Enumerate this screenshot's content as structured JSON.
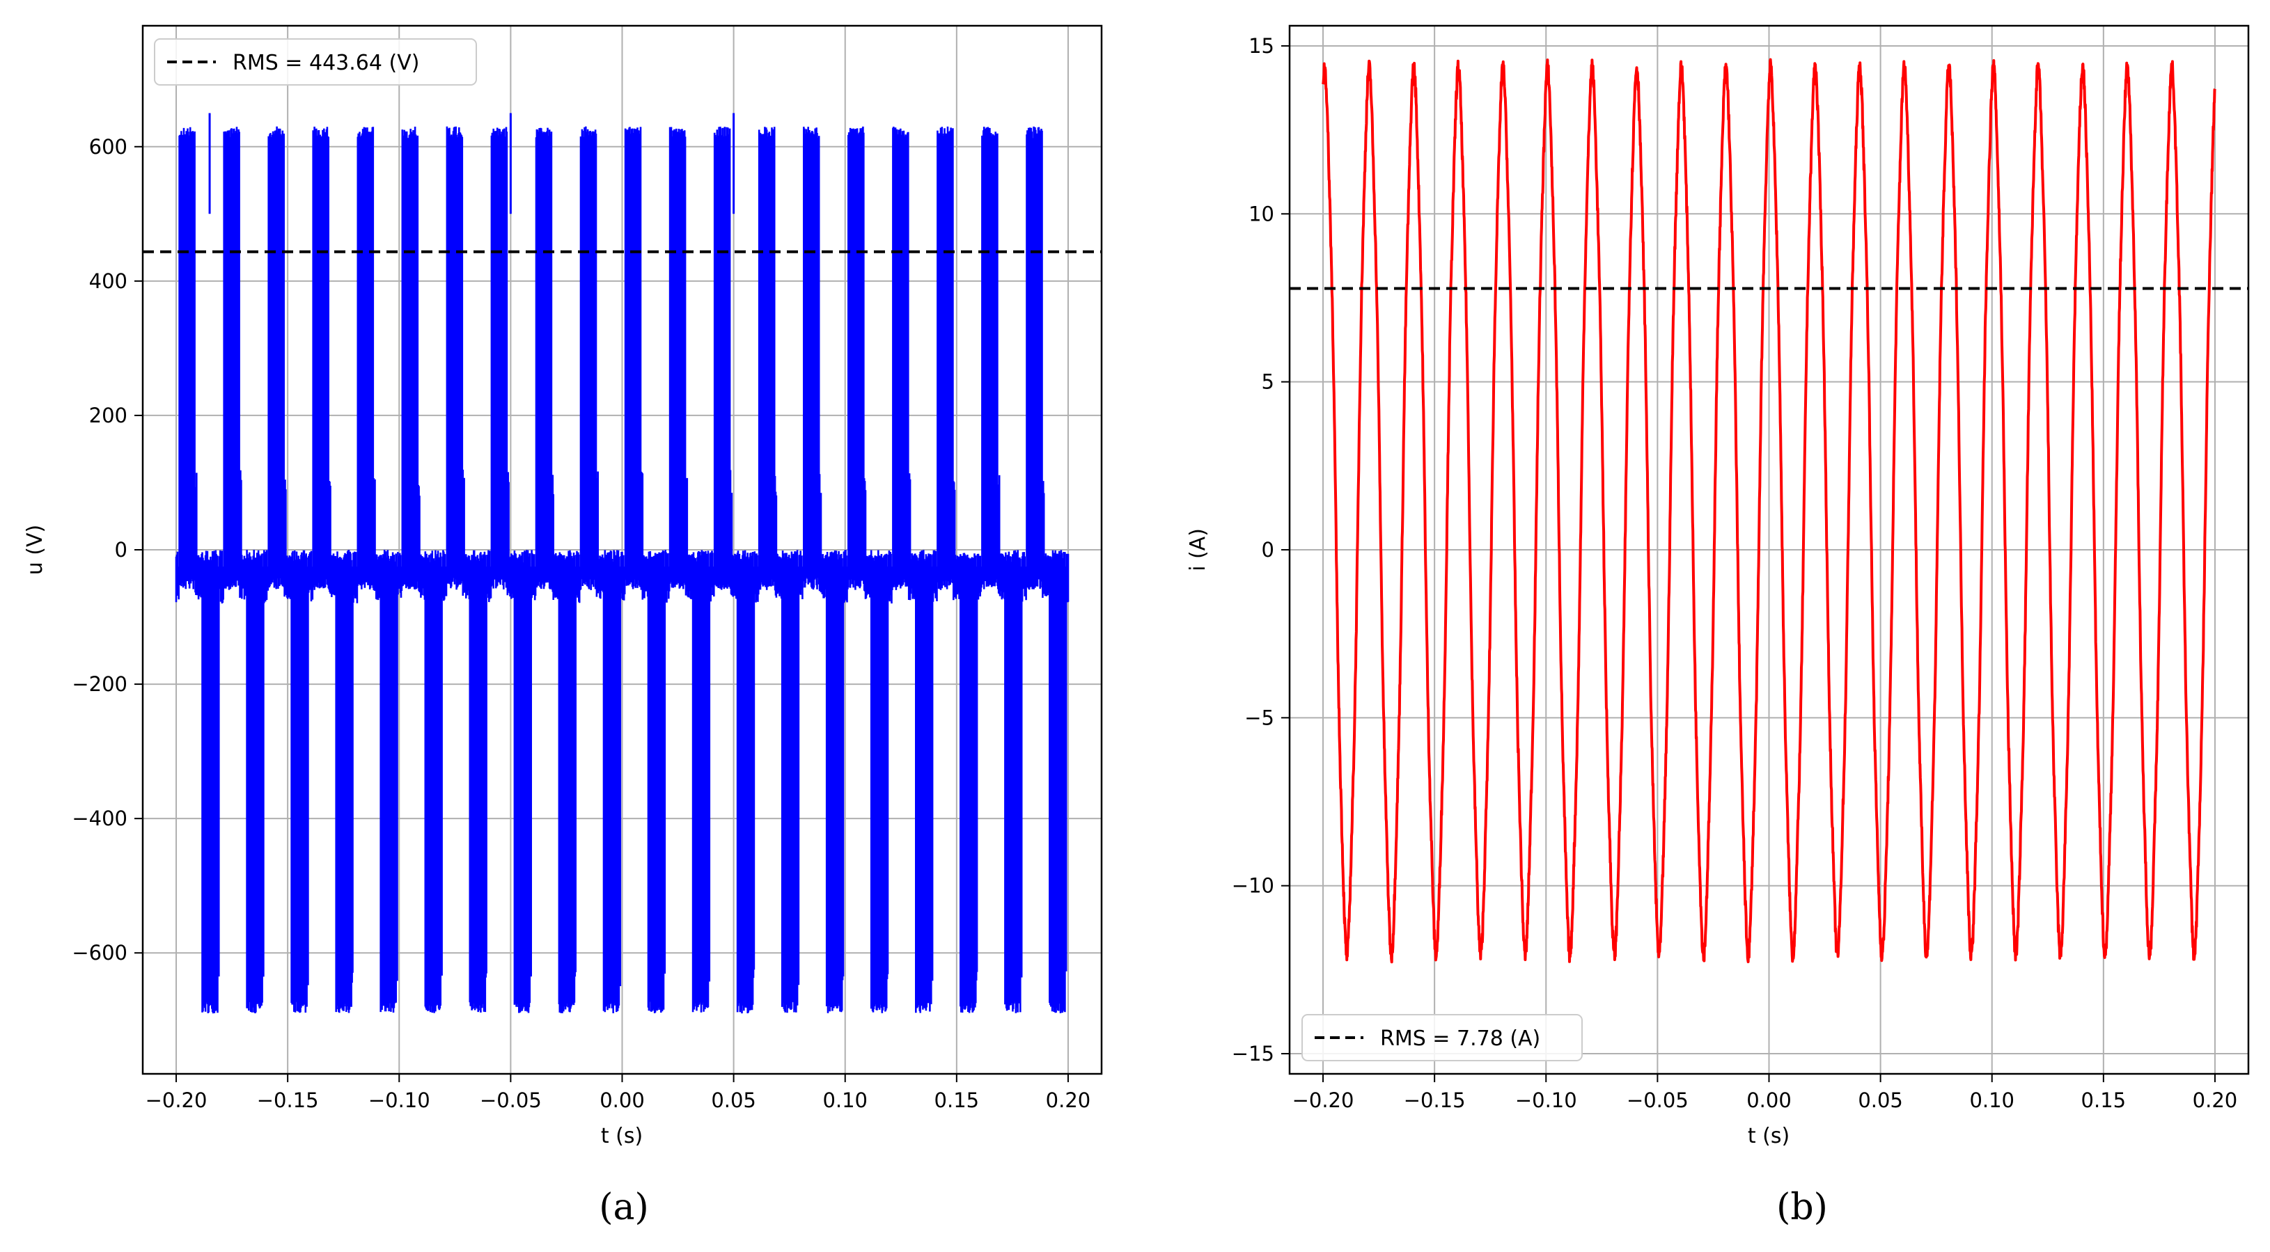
{
  "chart_data": [
    {
      "type": "line",
      "panel_label": "(a)",
      "xlabel": "t (s)",
      "ylabel": "u (V)",
      "xlim": [
        -0.215,
        0.215
      ],
      "ylim": [
        -780,
        780
      ],
      "xticks": [
        -0.2,
        -0.15,
        -0.1,
        -0.05,
        0.0,
        0.05,
        0.1,
        0.15,
        0.2
      ],
      "xtick_labels": [
        "−0.20",
        "−0.15",
        "−0.10",
        "−0.05",
        "0.00",
        "0.05",
        "0.10",
        "0.15",
        "0.20"
      ],
      "yticks": [
        -600,
        -400,
        -200,
        0,
        200,
        400,
        600
      ],
      "ytick_labels": [
        "−600",
        "−400",
        "−200",
        "0",
        "200",
        "400",
        "600"
      ],
      "grid": true,
      "legend_position": "top-left",
      "series": [
        {
          "kind": "pwm-voltage",
          "color": "#0000ff",
          "x_range": [
            -0.2,
            0.2
          ],
          "period": 0.02,
          "peak_max": 630,
          "peak_min": -690,
          "baseline": -40,
          "spike_max": 650
        },
        {
          "kind": "rms-line",
          "name": "RMS = 443.64 (V)",
          "value": 443.64,
          "color": "#000000",
          "style": "dashed"
        }
      ]
    },
    {
      "type": "line",
      "panel_label": "(b)",
      "xlabel": "t (s)",
      "ylabel": "i (A)",
      "xlim": [
        -0.215,
        0.215
      ],
      "ylim": [
        -15.6,
        15.6
      ],
      "xticks": [
        -0.2,
        -0.15,
        -0.1,
        -0.05,
        0.0,
        0.05,
        0.1,
        0.15,
        0.2
      ],
      "xtick_labels": [
        "−0.20",
        "−0.15",
        "−0.10",
        "−0.05",
        "0.00",
        "0.05",
        "0.10",
        "0.15",
        "0.20"
      ],
      "yticks": [
        -15,
        -10,
        -5,
        0,
        5,
        10,
        15
      ],
      "ytick_labels": [
        "−15",
        "−10",
        "−5",
        "0",
        "5",
        "10",
        "15"
      ],
      "grid": true,
      "legend_position": "bottom-left",
      "series": [
        {
          "kind": "sine-current",
          "color": "#ff0000",
          "x_range": [
            -0.2,
            0.2
          ],
          "period": 0.02,
          "max": 14.0,
          "min": -11.7,
          "start_value": 13.7,
          "end_value": 13.2
        },
        {
          "kind": "rms-line",
          "name": "RMS = 7.78 (A)",
          "value": 7.78,
          "color": "#000000",
          "style": "dashed"
        }
      ]
    }
  ]
}
